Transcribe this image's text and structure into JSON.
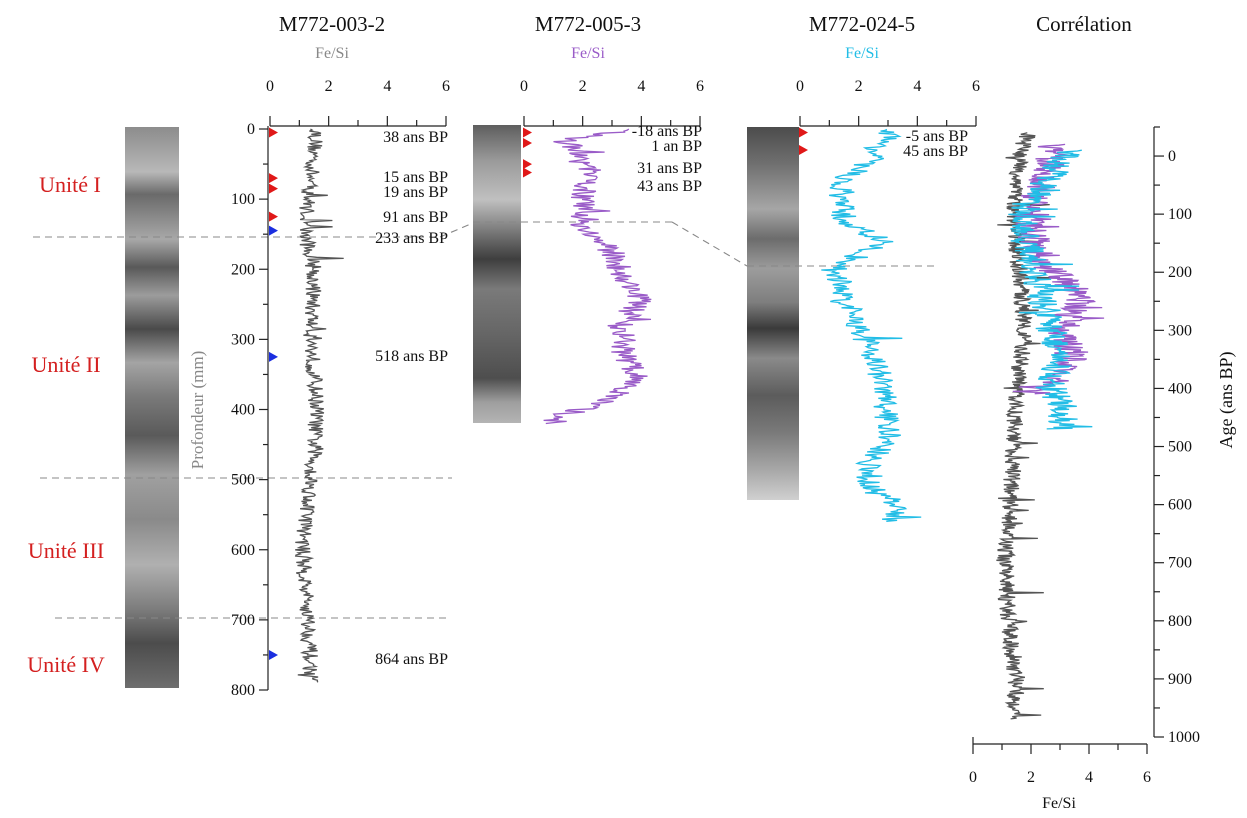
{
  "chart_data": {
    "type": "line",
    "cores": [
      {
        "title": "M772-003-2",
        "xlabel": "Fe/Si",
        "ylabel": "Profondeur (mm)",
        "xlim": [
          0,
          6
        ],
        "xticks": [
          "0",
          "2",
          "4",
          "6"
        ],
        "ylim": [
          0,
          800
        ],
        "yticks": [
          "0",
          "100",
          "200",
          "300",
          "400",
          "500",
          "600",
          "700",
          "800"
        ],
        "color": "#555555",
        "depth_range": [
          0,
          790
        ],
        "baseline": 1.35,
        "profile": [
          [
            0,
            1.6
          ],
          [
            100,
            1.3
          ],
          [
            150,
            1.2
          ],
          [
            200,
            1.5
          ],
          [
            300,
            1.4
          ],
          [
            400,
            1.6
          ],
          [
            500,
            1.4
          ],
          [
            600,
            1.1
          ],
          [
            700,
            1.3
          ],
          [
            790,
            1.4
          ]
        ],
        "dates": [
          {
            "depth": 5,
            "label": "38 ans BP",
            "marker": "red"
          },
          {
            "depth": 70,
            "label": "15 ans BP",
            "marker": "red"
          },
          {
            "depth": 85,
            "label": "19 ans BP",
            "marker": "red"
          },
          {
            "depth": 125,
            "label": "91 ans BP",
            "marker": "red"
          },
          {
            "depth": 145,
            "label": "233 ans BP",
            "marker": "blue"
          },
          {
            "depth": 325,
            "label": "518 ans BP",
            "marker": "blue"
          },
          {
            "depth": 750,
            "label": "864 ans BP",
            "marker": "blue"
          }
        ]
      },
      {
        "title": "M772-005-3",
        "xlabel": "Fe/Si",
        "xlim": [
          0,
          6
        ],
        "xticks": [
          "0",
          "2",
          "4",
          "6"
        ],
        "color": "#9a5cc8",
        "depth_range": [
          0,
          420
        ],
        "profile": [
          [
            0,
            3.8
          ],
          [
            15,
            1.4
          ],
          [
            60,
            2.2
          ],
          [
            100,
            2.0
          ],
          [
            140,
            2.0
          ],
          [
            180,
            3.1
          ],
          [
            210,
            3.3
          ],
          [
            240,
            4.0
          ],
          [
            280,
            3.3
          ],
          [
            320,
            3.4
          ],
          [
            360,
            3.9
          ],
          [
            390,
            2.6
          ],
          [
            410,
            1.2
          ],
          [
            420,
            1.0
          ]
        ],
        "dates": [
          {
            "depth": 5,
            "label": "-18 ans BP",
            "marker": "red"
          },
          {
            "depth": 20,
            "label": "1 an BP",
            "marker": "red"
          },
          {
            "depth": 50,
            "label": "31 ans BP",
            "marker": "red"
          },
          {
            "depth": 62,
            "label": "43 ans BP",
            "marker": "red"
          }
        ]
      },
      {
        "title": "M772-024-5",
        "xlabel": "Fe/Si",
        "xlim": [
          0,
          6
        ],
        "xticks": [
          "0",
          "2",
          "4",
          "6"
        ],
        "color": "#22bde6",
        "depth_range": [
          0,
          560
        ],
        "profile": [
          [
            0,
            3.2
          ],
          [
            40,
            2.4
          ],
          [
            80,
            1.3
          ],
          [
            130,
            1.5
          ],
          [
            160,
            2.8
          ],
          [
            200,
            1.2
          ],
          [
            260,
            1.7
          ],
          [
            320,
            2.5
          ],
          [
            380,
            2.9
          ],
          [
            440,
            3.0
          ],
          [
            500,
            2.0
          ],
          [
            540,
            3.4
          ],
          [
            560,
            2.9
          ]
        ],
        "dates": [
          {
            "depth": 5,
            "label": "-5 ans BP",
            "marker": "red"
          },
          {
            "depth": 30,
            "label": "45 ans BP",
            "marker": "red"
          }
        ]
      }
    ],
    "correlation": {
      "title": "Corrélation",
      "xlabel": "Fe/Si",
      "ylabel": "Age (ans BP)",
      "xlim": [
        0,
        6
      ],
      "xticks": [
        "0",
        "2",
        "4",
        "6"
      ],
      "ylim": [
        -50,
        1000
      ],
      "yticks": [
        "0",
        "100",
        "200",
        "300",
        "400",
        "500",
        "600",
        "700",
        "800",
        "900",
        "1000"
      ],
      "series": [
        {
          "color": "#555555",
          "age_range": [
            -40,
            970
          ],
          "profile": [
            [
              -40,
              1.9
            ],
            [
              0,
              1.6
            ],
            [
              100,
              1.4
            ],
            [
              200,
              1.6
            ],
            [
              300,
              1.8
            ],
            [
              400,
              1.5
            ],
            [
              500,
              1.4
            ],
            [
              600,
              1.3
            ],
            [
              700,
              1.1
            ],
            [
              800,
              1.2
            ],
            [
              900,
              1.5
            ],
            [
              970,
              1.4
            ]
          ]
        },
        {
          "color": "#9a5cc8",
          "age_range": [
            -20,
            410
          ],
          "profile": [
            [
              -20,
              2.8
            ],
            [
              20,
              2.6
            ],
            [
              100,
              1.9
            ],
            [
              180,
              2.3
            ],
            [
              240,
              3.8
            ],
            [
              300,
              3.1
            ],
            [
              350,
              3.4
            ],
            [
              390,
              2.7
            ],
            [
              410,
              1.6
            ]
          ]
        },
        {
          "color": "#22bde6",
          "age_range": [
            -10,
            470
          ],
          "profile": [
            [
              -10,
              3.3
            ],
            [
              40,
              2.6
            ],
            [
              100,
              1.6
            ],
            [
              180,
              2.0
            ],
            [
              250,
              2.4
            ],
            [
              330,
              2.9
            ],
            [
              400,
              2.7
            ],
            [
              440,
              3.2
            ],
            [
              470,
              2.9
            ]
          ]
        }
      ]
    },
    "units": [
      "Unité I",
      "Unité II",
      "Unité III",
      "Unité IV"
    ]
  }
}
